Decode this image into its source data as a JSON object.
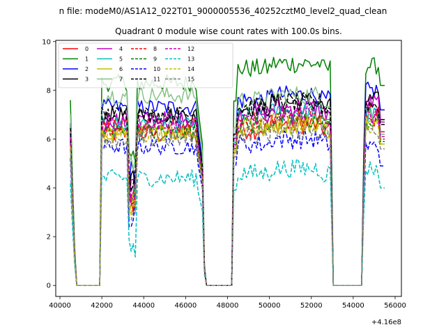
{
  "chart_data": {
    "type": "line",
    "suptitle": "n file: modeM0/AS1A12_022T01_9000005536_40252cztM0_level2_quad_clean",
    "title": "Quadrant 0 module wise count rates with 100.0s bins.",
    "xlabel": "",
    "ylabel": "",
    "x_offset_label": "+4.16e8",
    "xlim": [
      39800,
      56300
    ],
    "ylim": [
      -0.45,
      10.05
    ],
    "x_ticks": [
      40000,
      42000,
      44000,
      46000,
      48000,
      50000,
      52000,
      54000,
      56000
    ],
    "x_tick_labels": [
      "40000",
      "42000",
      "44000",
      "46000",
      "48000",
      "50000",
      "52000",
      "54000",
      "56000"
    ],
    "y_ticks": [
      0,
      2,
      4,
      6,
      8,
      10
    ],
    "y_tick_labels": [
      "0",
      "2",
      "4",
      "6",
      "8",
      "10"
    ],
    "segments": [
      [
        40500,
        40700
      ],
      [
        41950,
        46850
      ],
      [
        48250,
        53000
      ],
      [
        54450,
        55500
      ]
    ],
    "gaps": [
      [
        40800,
        41900
      ],
      [
        47000,
        48200
      ],
      [
        53150,
        54400
      ]
    ],
    "legend": {
      "placement": "top-left",
      "columns": 5
    },
    "series": [
      {
        "name": "0",
        "color": "#ff0000",
        "dash": "solid",
        "level": [
          6.3,
          6.2,
          6.4,
          7.1
        ]
      },
      {
        "name": "1",
        "color": "#008000",
        "dash": "solid",
        "level": [
          8.0,
          8.3,
          8.9,
          9.0
        ]
      },
      {
        "name": "2",
        "color": "#0000ff",
        "dash": "solid",
        "level": [
          7.0,
          7.3,
          7.6,
          8.0
        ]
      },
      {
        "name": "3",
        "color": "#000000",
        "dash": "solid",
        "level": [
          6.6,
          7.0,
          7.3,
          7.6
        ]
      },
      {
        "name": "4",
        "color": "#bf00bf",
        "dash": "solid",
        "level": [
          6.6,
          6.8,
          7.1,
          7.5
        ]
      },
      {
        "name": "5",
        "color": "#00bfbf",
        "dash": "solid",
        "level": [
          6.5,
          6.6,
          6.9,
          7.0
        ]
      },
      {
        "name": "6",
        "color": "#bfbf00",
        "dash": "solid",
        "level": [
          6.1,
          6.3,
          6.4,
          6.6
        ]
      },
      {
        "name": "7",
        "color": "#87c287",
        "dash": "solid",
        "level": [
          7.4,
          7.8,
          7.6,
          7.0
        ]
      },
      {
        "name": "8",
        "color": "#ff0000",
        "dash": "dashed",
        "level": [
          6.3,
          6.5,
          6.7,
          6.8
        ]
      },
      {
        "name": "9",
        "color": "#008000",
        "dash": "dashed",
        "level": [
          6.2,
          6.3,
          6.6,
          6.7
        ]
      },
      {
        "name": "10",
        "color": "#0000ff",
        "dash": "dashed",
        "level": [
          5.5,
          5.7,
          5.8,
          5.7
        ]
      },
      {
        "name": "11",
        "color": "#000000",
        "dash": "dashed",
        "level": [
          6.8,
          7.0,
          7.3,
          7.4
        ]
      },
      {
        "name": "12",
        "color": "#bf00bf",
        "dash": "dashed",
        "level": [
          6.4,
          6.6,
          6.8,
          6.9
        ]
      },
      {
        "name": "13",
        "color": "#00bfbf",
        "dash": "dashed",
        "level": [
          4.4,
          4.4,
          4.6,
          4.8
        ]
      },
      {
        "name": "14",
        "color": "#bfbf00",
        "dash": "dashed",
        "level": [
          6.0,
          6.2,
          6.5,
          6.6
        ]
      },
      {
        "name": "15",
        "color": "#808080",
        "dash": "dashed",
        "level": [
          5.9,
          6.0,
          6.2,
          6.4
        ]
      }
    ]
  }
}
